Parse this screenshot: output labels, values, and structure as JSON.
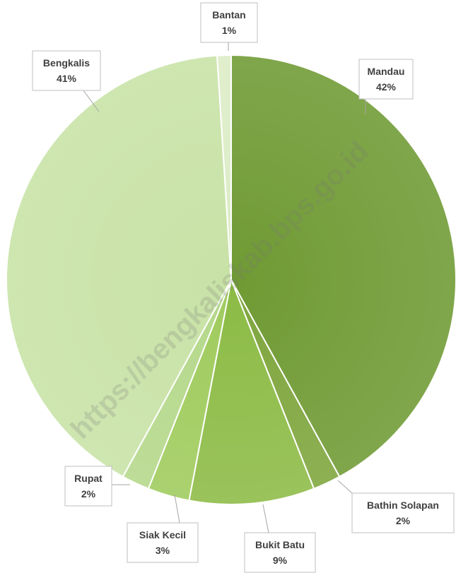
{
  "chart_data": {
    "type": "pie",
    "categories": [
      "Mandau",
      "Bathin Solapan",
      "Bukit Batu",
      "Siak Kecil",
      "Rupat",
      "Bengkalis",
      "Bantan"
    ],
    "values": [
      42,
      2,
      9,
      3,
      2,
      41,
      1
    ],
    "labels": [
      "42%",
      "2%",
      "9%",
      "3%",
      "2%",
      "41%",
      "1%"
    ],
    "colors": [
      "#6f9a33",
      "#7ea53c",
      "#8cbb45",
      "#9fcb5c",
      "#b4d88a",
      "#c8e2a6",
      "#dcecc6"
    ],
    "title": "",
    "start_angle_deg": 0,
    "direction": "clockwise"
  },
  "watermark": {
    "text": "https://bengkaliskab.bps.go.id"
  }
}
